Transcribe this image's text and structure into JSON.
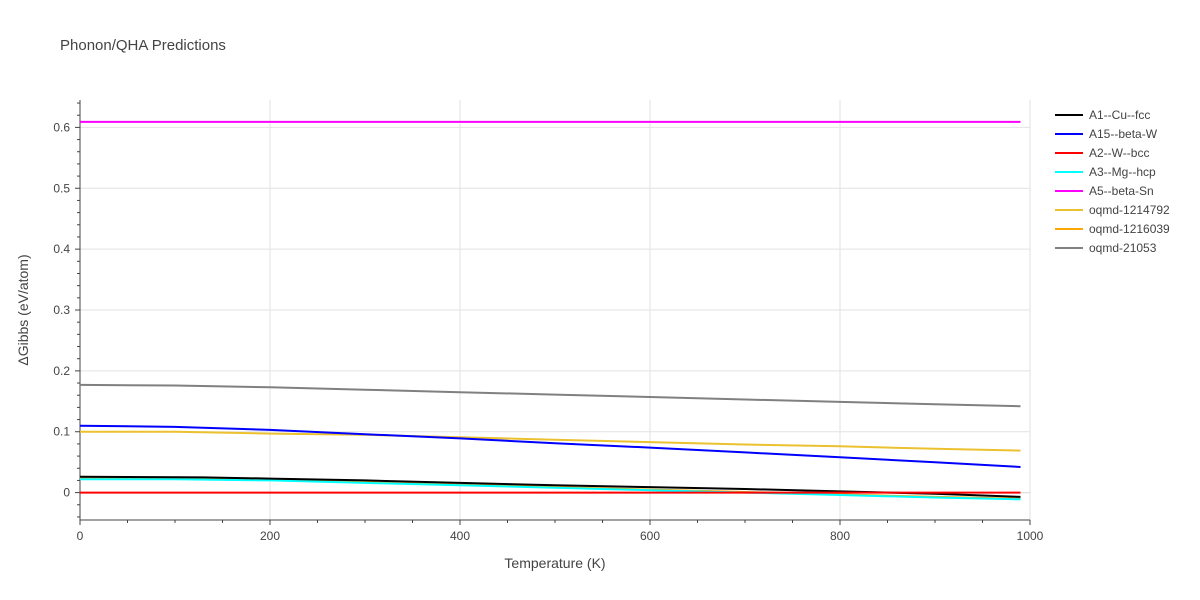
{
  "chart_data": {
    "type": "line",
    "title": "Phonon/QHA Predictions",
    "xlabel": "Temperature (K)",
    "ylabel": "ΔGibbs (eV/atom)",
    "xlim": [
      0,
      1000
    ],
    "ylim": [
      -0.045,
      0.645
    ],
    "x_ticks": [
      0,
      200,
      400,
      600,
      800,
      1000
    ],
    "x_tick_labels": [
      "0",
      "200",
      "400",
      "600",
      "800",
      "1000"
    ],
    "y_ticks": [
      0,
      0.1,
      0.2,
      0.3,
      0.4,
      0.5,
      0.6
    ],
    "y_tick_labels": [
      "0",
      "0.1",
      "0.2",
      "0.3",
      "0.4",
      "0.5",
      "0.6"
    ],
    "grid": true,
    "legend_position": "right",
    "series": [
      {
        "name": "oqmd-21053",
        "color": "#808080",
        "x": [
          0,
          100,
          200,
          300,
          400,
          500,
          600,
          700,
          800,
          900,
          990
        ],
        "y": [
          0.177,
          0.176,
          0.173,
          0.169,
          0.165,
          0.161,
          0.157,
          0.153,
          0.149,
          0.145,
          0.142
        ]
      },
      {
        "name": "oqmd-1214792",
        "color": "#ebc130",
        "x": [
          0,
          100,
          200,
          300,
          400,
          500,
          600,
          700,
          800,
          900,
          990
        ],
        "y": [
          0.1,
          0.1,
          0.097,
          0.095,
          0.091,
          0.087,
          0.083,
          0.079,
          0.076,
          0.072,
          0.069
        ]
      },
      {
        "name": "oqmd-1216039",
        "color": "#ffa500",
        "x": [
          0,
          100,
          200,
          300,
          400,
          500,
          600,
          700,
          800,
          900,
          990
        ],
        "y": [
          0.023,
          0.023,
          0.021,
          0.017,
          0.013,
          0.009,
          0.005,
          0.001,
          -0.003,
          -0.007,
          -0.01
        ]
      },
      {
        "name": "A3--Mg--hcp",
        "color": "#00ffff",
        "x": [
          0,
          100,
          200,
          300,
          400,
          500,
          600,
          700,
          800,
          900,
          990
        ],
        "y": [
          0.022,
          0.022,
          0.02,
          0.016,
          0.012,
          0.008,
          0.004,
          0.0,
          -0.004,
          -0.008,
          -0.011
        ]
      },
      {
        "name": "A15--beta-W",
        "color": "#0000ff",
        "x": [
          0,
          100,
          200,
          300,
          400,
          500,
          600,
          700,
          800,
          900,
          990
        ],
        "y": [
          0.11,
          0.108,
          0.103,
          0.096,
          0.089,
          0.081,
          0.074,
          0.066,
          0.058,
          0.05,
          0.042
        ]
      },
      {
        "name": "A5--beta-Sn",
        "color": "#ff00ff",
        "x": [
          0,
          200,
          400,
          600,
          800,
          990
        ],
        "y": [
          0.609,
          0.609,
          0.609,
          0.609,
          0.609,
          0.609
        ]
      },
      {
        "name": "A1--Cu--fcc",
        "color": "#000000",
        "x": [
          0,
          130,
          200,
          300,
          400,
          500,
          600,
          700,
          800,
          900,
          990
        ],
        "y": [
          0.026,
          0.025,
          0.023,
          0.02,
          0.016,
          0.012,
          0.009,
          0.006,
          0.002,
          -0.002,
          -0.007
        ]
      },
      {
        "name": "A2--W--bcc",
        "color": "#ff0000",
        "x": [
          0,
          200,
          400,
          600,
          800,
          990
        ],
        "y": [
          0,
          0,
          0,
          0,
          0,
          0
        ]
      }
    ],
    "legend_order": [
      "A1--Cu--fcc",
      "A15--beta-W",
      "A2--W--bcc",
      "A3--Mg--hcp",
      "A5--beta-Sn",
      "oqmd-1214792",
      "oqmd-1216039",
      "oqmd-21053"
    ]
  }
}
